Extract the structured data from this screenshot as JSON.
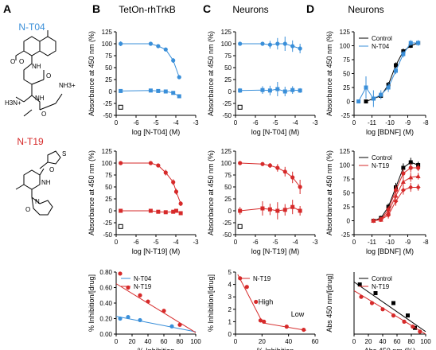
{
  "figure": {
    "panel_letters": [
      "A",
      "B",
      "C",
      "D"
    ],
    "column_titles": {
      "B": "TetOn-rhTrkB",
      "C": "Neurons",
      "D": "Neurons"
    },
    "compounds": [
      {
        "name": "N-T04",
        "color": "#3a8fd9"
      },
      {
        "name": "N-T19",
        "color": "#d62a2a"
      }
    ],
    "structure_labels": {
      "nh3_plus": "NH3+",
      "h3n_plus": "H3N+",
      "nh_labels": [
        "NH",
        "NH",
        "NH"
      ],
      "o_labels": [
        "O",
        "O",
        "O",
        "O",
        "O",
        "O"
      ],
      "s_label": "S",
      "n_label": "N"
    }
  },
  "chart_data": [
    {
      "id": "B-top",
      "type": "line",
      "ylabel": "Absorbance at 450 nm (%)",
      "xlabel": "log [N-T04] (M)",
      "xlim": [
        -7.8,
        -2.5
      ],
      "ylim": [
        -50,
        125
      ],
      "xticks": [
        "0",
        "-6",
        "-5",
        "-4",
        "-3"
      ],
      "yticks": [
        "-50",
        "-25",
        "0",
        "25",
        "50",
        "75",
        "100",
        "125"
      ],
      "series": [
        {
          "marker": "circle",
          "color": "#3a8fd9",
          "x": [
            -7.5,
            -5.5,
            -5,
            -4.5,
            -4,
            -3.6
          ],
          "y": [
            100,
            100,
            95,
            88,
            65,
            30
          ],
          "err": [
            5,
            3,
            3,
            4,
            5,
            4
          ]
        },
        {
          "marker": "square",
          "color": "#3a8fd9",
          "x": [
            -7.5,
            -5.5,
            -5,
            -4.5,
            -4,
            -3.6
          ],
          "y": [
            1,
            2,
            1,
            0,
            -3,
            -10
          ],
          "err": [
            3,
            2,
            2,
            2,
            2,
            2
          ]
        },
        {
          "marker": "open-square",
          "color": "#000000",
          "x": [
            -7.5
          ],
          "y": [
            -33
          ],
          "err": [
            0
          ]
        }
      ]
    },
    {
      "id": "C-top",
      "type": "line",
      "ylabel": "Absorbance at 450 nm (%)",
      "xlabel": "log [N-T04] (M)",
      "xlim": [
        -7.8,
        -2.5
      ],
      "ylim": [
        -50,
        125
      ],
      "xticks": [
        "0",
        "-6",
        "-5",
        "-4",
        "-3"
      ],
      "yticks": [
        "-50",
        "-25",
        "0",
        "25",
        "50",
        "75",
        "100",
        "125"
      ],
      "series": [
        {
          "marker": "circle",
          "color": "#3a8fd9",
          "x": [
            -7.5,
            -6,
            -5.5,
            -5,
            -4.5,
            -4,
            -3.5
          ],
          "y": [
            100,
            100,
            98,
            100,
            100,
            95,
            90
          ],
          "err": [
            3,
            3,
            8,
            12,
            15,
            12,
            10
          ]
        },
        {
          "marker": "square",
          "color": "#3a8fd9",
          "x": [
            -7.5,
            -6,
            -5.5,
            -5,
            -4.5,
            -4,
            -3.5
          ],
          "y": [
            2,
            3,
            2,
            5,
            0,
            3,
            2
          ],
          "err": [
            5,
            8,
            10,
            15,
            10,
            8,
            5
          ]
        },
        {
          "marker": "open-square",
          "color": "#000000",
          "x": [
            -7.5
          ],
          "y": [
            -33
          ],
          "err": [
            0
          ]
        }
      ]
    },
    {
      "id": "D-top",
      "type": "line",
      "ylabel": "Absorbance at 450 nm (%)",
      "xlabel": "log [BDNF] (M)",
      "xlim": [
        -12.3,
        -7.5
      ],
      "ylim": [
        -25,
        125
      ],
      "xticks": [
        "0",
        "-11",
        "-10",
        "-9",
        "-8"
      ],
      "yticks": [
        "-25",
        "0",
        "25",
        "50",
        "75",
        "100",
        "125"
      ],
      "series": [
        {
          "name": "Control",
          "marker": "square",
          "color": "#000000",
          "x": [
            -11.5,
            -11,
            -10.5,
            -10,
            -9.5,
            -9,
            -8.5,
            -8
          ],
          "y": [
            0,
            5,
            10,
            30,
            65,
            90,
            100,
            105
          ],
          "err": [
            3,
            3,
            4,
            5,
            5,
            5,
            4,
            4
          ]
        },
        {
          "name": "N-T04",
          "marker": "square",
          "color": "#3a8fd9",
          "x": [
            -12,
            -11.5,
            -11,
            -10.5,
            -10,
            -9.5,
            -9,
            -8.5,
            -8
          ],
          "y": [
            0,
            25,
            5,
            12,
            25,
            55,
            85,
            105,
            105
          ],
          "err": [
            3,
            20,
            15,
            8,
            8,
            6,
            6,
            5,
            5
          ]
        }
      ]
    },
    {
      "id": "B-mid",
      "type": "line",
      "ylabel": "Absorbance at 450 nm (%)",
      "xlabel": "log [N-T19] (M)",
      "xlim": [
        -7.8,
        -2.5
      ],
      "ylim": [
        -50,
        125
      ],
      "xticks": [
        "0",
        "-6",
        "-5",
        "-4",
        "-3"
      ],
      "yticks": [
        "-50",
        "-25",
        "0",
        "25",
        "50",
        "75",
        "100",
        "125"
      ],
      "series": [
        {
          "marker": "circle",
          "color": "#d62a2a",
          "x": [
            -7.5,
            -5.5,
            -5,
            -4.5,
            -4,
            -3.8,
            -3.5
          ],
          "y": [
            100,
            100,
            95,
            80,
            60,
            40,
            15
          ],
          "err": [
            4,
            4,
            4,
            6,
            6,
            6,
            5
          ]
        },
        {
          "marker": "square",
          "color": "#d62a2a",
          "x": [
            -7.5,
            -5.5,
            -5,
            -4.5,
            -4,
            -3.8,
            -3.5
          ],
          "y": [
            0,
            0,
            -2,
            -3,
            -2,
            0,
            -5
          ],
          "err": [
            3,
            3,
            3,
            3,
            3,
            3,
            3
          ]
        },
        {
          "marker": "open-square",
          "color": "#000000",
          "x": [
            -7.5
          ],
          "y": [
            -33
          ],
          "err": [
            0
          ]
        }
      ]
    },
    {
      "id": "C-mid",
      "type": "line",
      "ylabel": "Absorbance at 450 nm (%)",
      "xlabel": "log [N-T19] (M)",
      "xlim": [
        -7.8,
        -2.5
      ],
      "ylim": [
        -50,
        125
      ],
      "xticks": [
        "0",
        "-6",
        "-5",
        "-4",
        "-3"
      ],
      "yticks": [
        "-50",
        "-25",
        "0",
        "25",
        "50",
        "75",
        "100",
        "125"
      ],
      "series": [
        {
          "marker": "circle",
          "color": "#d62a2a",
          "x": [
            -7.5,
            -6,
            -5.5,
            -5,
            -4.5,
            -4,
            -3.5
          ],
          "y": [
            100,
            98,
            95,
            90,
            82,
            70,
            50
          ],
          "err": [
            4,
            4,
            5,
            8,
            10,
            12,
            15
          ]
        },
        {
          "marker": "square",
          "color": "#d62a2a",
          "x": [
            -7.5,
            -6,
            -5.5,
            -5,
            -4.5,
            -4,
            -3.5
          ],
          "y": [
            0,
            5,
            3,
            0,
            2,
            8,
            0
          ],
          "err": [
            8,
            15,
            12,
            18,
            12,
            15,
            10
          ]
        },
        {
          "marker": "open-square",
          "color": "#000000",
          "x": [
            -7.5
          ],
          "y": [
            -33
          ],
          "err": [
            0
          ]
        }
      ]
    },
    {
      "id": "D-mid",
      "type": "line",
      "ylabel": "Absorbance at 450 nm (%)",
      "xlabel": "log [BDNF] (M)",
      "xlim": [
        -12.3,
        -7.5
      ],
      "ylim": [
        -25,
        125
      ],
      "xticks": [
        "0",
        "-11",
        "-10",
        "-9",
        "-8"
      ],
      "yticks": [
        "-25",
        "0",
        "25",
        "50",
        "75",
        "100",
        "125"
      ],
      "series": [
        {
          "name": "Control",
          "marker": "square",
          "color": "#000000",
          "x": [
            -11,
            -10.5,
            -10,
            -9.5,
            -9,
            -8.5,
            -8
          ],
          "y": [
            0,
            5,
            25,
            60,
            95,
            105,
            100
          ],
          "err": [
            3,
            4,
            6,
            8,
            8,
            8,
            6
          ]
        },
        {
          "name": "N-T19",
          "marker": "circle",
          "color": "#d62a2a",
          "x": [
            -11,
            -10.5,
            -10,
            -9.5,
            -9,
            -8.5,
            -8
          ],
          "y": [
            0,
            3,
            20,
            55,
            85,
            95,
            95
          ],
          "err": [
            3,
            4,
            6,
            8,
            8,
            8,
            6
          ]
        },
        {
          "marker": "triangle",
          "color": "#d62a2a",
          "x": [
            -11,
            -10.5,
            -10,
            -9.5,
            -9,
            -8.5,
            -8
          ],
          "y": [
            0,
            2,
            15,
            45,
            70,
            78,
            80
          ],
          "err": [
            3,
            4,
            6,
            8,
            8,
            8,
            6
          ]
        },
        {
          "marker": "diamond",
          "color": "#d62a2a",
          "x": [
            -11,
            -10.5,
            -10,
            -9.5,
            -9,
            -8.5,
            -8
          ],
          "y": [
            0,
            2,
            10,
            35,
            55,
            60,
            60
          ],
          "err": [
            3,
            4,
            6,
            8,
            8,
            8,
            6
          ]
        }
      ]
    },
    {
      "id": "B-bot",
      "type": "scatter",
      "ylabel": "% Inhibition/[drug]",
      "xlabel": "% Inhibition",
      "xlim": [
        0,
        100
      ],
      "ylim": [
        0,
        0.8
      ],
      "xticks": [
        "0",
        "20",
        "40",
        "60",
        "80",
        "100"
      ],
      "yticks": [
        "0.00",
        "0.20",
        "0.40",
        "0.60",
        "0.80"
      ],
      "series": [
        {
          "name": "N-T04",
          "marker": "circle",
          "color": "#3a8fd9",
          "x": [
            5,
            15,
            30,
            70
          ],
          "y": [
            0.2,
            0.22,
            0.18,
            0.1
          ],
          "fit": [
            [
              0,
              0.23
            ],
            [
              100,
              0.03
            ]
          ]
        },
        {
          "name": "N-T19",
          "marker": "circle",
          "color": "#d62a2a",
          "x": [
            5,
            15,
            30,
            40,
            60,
            80
          ],
          "y": [
            0.78,
            0.6,
            0.5,
            0.42,
            0.3,
            0.12
          ],
          "fit": [
            [
              0,
              0.65
            ],
            [
              100,
              0.02
            ]
          ]
        }
      ]
    },
    {
      "id": "C-bot",
      "type": "scatter",
      "ylabel": "% Inhibition/[drug]",
      "xlabel": "% Inhibition",
      "xlim": [
        0,
        70
      ],
      "ylim": [
        0,
        5
      ],
      "xticks": [
        "0",
        "20",
        "40",
        "60"
      ],
      "yticks": [
        "0",
        "1",
        "2",
        "3",
        "4",
        "5"
      ],
      "annotations": [
        "High",
        "Low"
      ],
      "series": [
        {
          "name": "N-T19",
          "marker": "circle",
          "color": "#d62a2a",
          "x": [
            4,
            10,
            18,
            22,
            25,
            45,
            60
          ],
          "y": [
            4.5,
            3.8,
            2.6,
            1.1,
            1.0,
            0.6,
            0.35
          ],
          "fit": [
            [
              2,
              4.8
            ],
            [
              24,
              0.9
            ],
            [
              62,
              0.3
            ]
          ]
        }
      ]
    },
    {
      "id": "D-bot",
      "type": "scatter",
      "ylabel": "Abs 450 nm/[drug]",
      "xlabel": "Abs 450 nm (%)",
      "xlim": [
        0,
        100
      ],
      "ylim": [
        0,
        0.5
      ],
      "xticks": [
        "0",
        "20",
        "40",
        "60",
        "80",
        "100"
      ],
      "yticks": [],
      "series": [
        {
          "name": "Control",
          "marker": "square",
          "color": "#000000",
          "x": [
            8,
            30,
            55,
            75,
            85
          ],
          "y": [
            0.4,
            0.33,
            0.25,
            0.15,
            0.05
          ],
          "fit": [
            [
              0,
              0.42
            ],
            [
              100,
              0.02
            ]
          ]
        },
        {
          "name": "N-T19",
          "marker": "circle",
          "color": "#d62a2a",
          "x": [
            10,
            25,
            40,
            55,
            70,
            82,
            92
          ],
          "y": [
            0.3,
            0.25,
            0.2,
            0.15,
            0.1,
            0.06,
            0.02
          ],
          "fit": [
            [
              0,
              0.35
            ],
            [
              100,
              0
            ]
          ]
        }
      ]
    }
  ]
}
